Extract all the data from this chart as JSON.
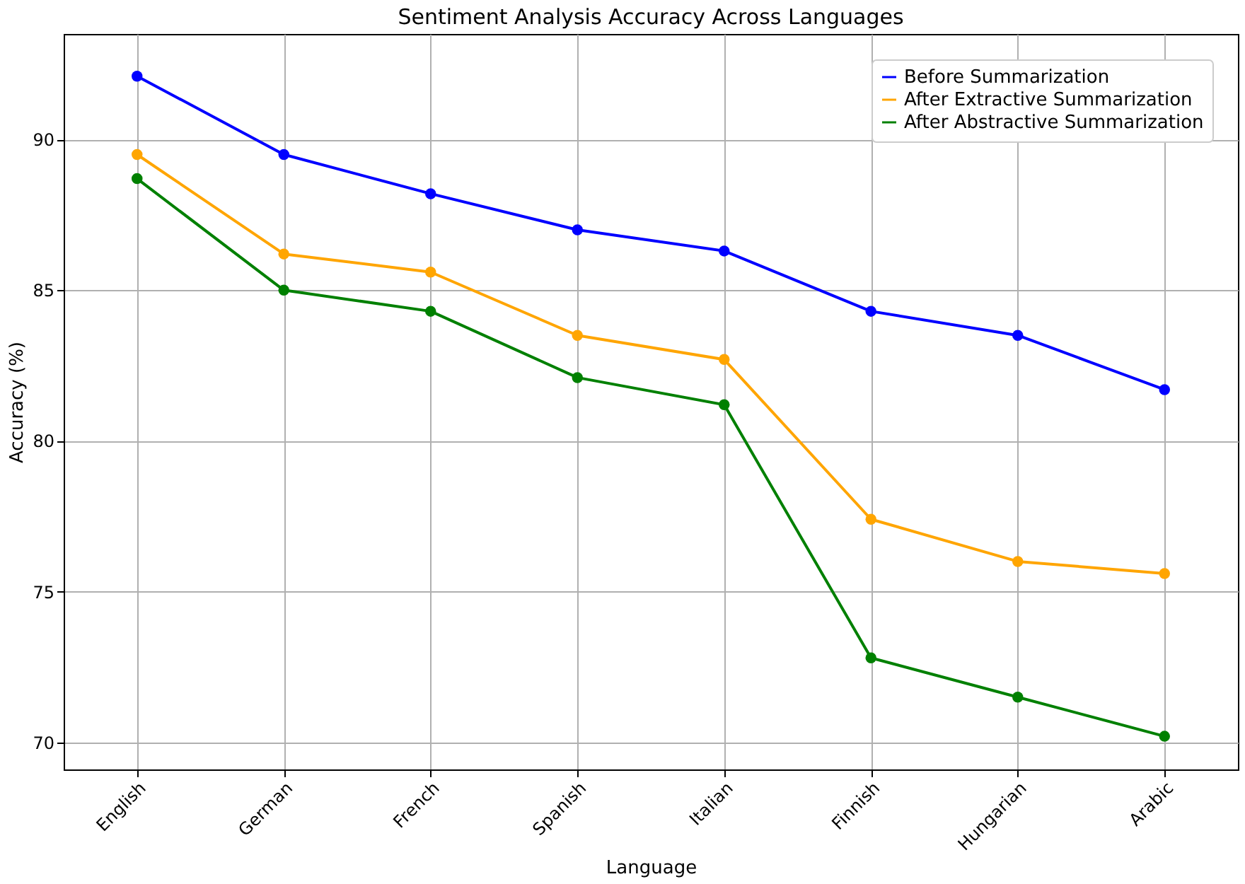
{
  "chart_data": {
    "type": "line",
    "title": "Sentiment Analysis Accuracy Across Languages",
    "xlabel": "Language",
    "ylabel": "Accuracy (%)",
    "categories": [
      "English",
      "German",
      "French",
      "Spanish",
      "Italian",
      "Finnish",
      "Hungarian",
      "Arabic"
    ],
    "series": [
      {
        "name": "Before Summarization",
        "color": "#0000ff",
        "values": [
          92.1,
          89.5,
          88.2,
          87.0,
          86.3,
          84.3,
          83.5,
          81.7
        ]
      },
      {
        "name": "After Extractive Summarization",
        "color": "#ffa500",
        "values": [
          89.5,
          86.2,
          85.6,
          83.5,
          82.7,
          77.4,
          76.0,
          75.6
        ]
      },
      {
        "name": "After Abstractive Summarization",
        "color": "#008000",
        "values": [
          88.7,
          85.0,
          84.3,
          82.1,
          81.2,
          72.8,
          71.5,
          70.2
        ]
      }
    ],
    "ylim": [
      69.1,
      93.5
    ],
    "yticks": [
      70,
      75,
      80,
      85,
      90
    ],
    "grid": true,
    "legend": "top right",
    "marker": "circle",
    "line_style": "solid"
  }
}
